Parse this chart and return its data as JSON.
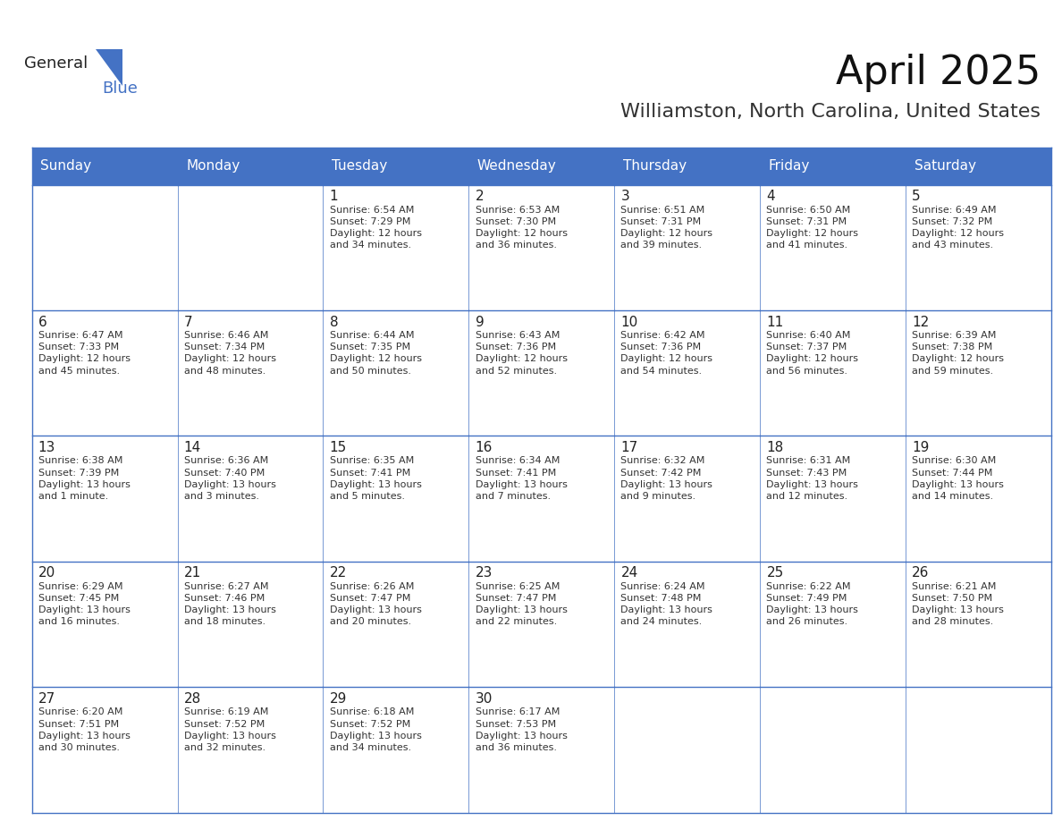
{
  "title": "April 2025",
  "subtitle": "Williamston, North Carolina, United States",
  "header_color": "#4472C4",
  "header_text_color": "#FFFFFF",
  "cell_bg_color": "#FFFFFF",
  "cell_alt_bg_color": "#F2F2F2",
  "border_color": "#4472C4",
  "text_color": "#333333",
  "days_of_week": [
    "Sunday",
    "Monday",
    "Tuesday",
    "Wednesday",
    "Thursday",
    "Friday",
    "Saturday"
  ],
  "weeks": [
    [
      {
        "day": "",
        "info": ""
      },
      {
        "day": "",
        "info": ""
      },
      {
        "day": "1",
        "info": "Sunrise: 6:54 AM\nSunset: 7:29 PM\nDaylight: 12 hours\nand 34 minutes."
      },
      {
        "day": "2",
        "info": "Sunrise: 6:53 AM\nSunset: 7:30 PM\nDaylight: 12 hours\nand 36 minutes."
      },
      {
        "day": "3",
        "info": "Sunrise: 6:51 AM\nSunset: 7:31 PM\nDaylight: 12 hours\nand 39 minutes."
      },
      {
        "day": "4",
        "info": "Sunrise: 6:50 AM\nSunset: 7:31 PM\nDaylight: 12 hours\nand 41 minutes."
      },
      {
        "day": "5",
        "info": "Sunrise: 6:49 AM\nSunset: 7:32 PM\nDaylight: 12 hours\nand 43 minutes."
      }
    ],
    [
      {
        "day": "6",
        "info": "Sunrise: 6:47 AM\nSunset: 7:33 PM\nDaylight: 12 hours\nand 45 minutes."
      },
      {
        "day": "7",
        "info": "Sunrise: 6:46 AM\nSunset: 7:34 PM\nDaylight: 12 hours\nand 48 minutes."
      },
      {
        "day": "8",
        "info": "Sunrise: 6:44 AM\nSunset: 7:35 PM\nDaylight: 12 hours\nand 50 minutes."
      },
      {
        "day": "9",
        "info": "Sunrise: 6:43 AM\nSunset: 7:36 PM\nDaylight: 12 hours\nand 52 minutes."
      },
      {
        "day": "10",
        "info": "Sunrise: 6:42 AM\nSunset: 7:36 PM\nDaylight: 12 hours\nand 54 minutes."
      },
      {
        "day": "11",
        "info": "Sunrise: 6:40 AM\nSunset: 7:37 PM\nDaylight: 12 hours\nand 56 minutes."
      },
      {
        "day": "12",
        "info": "Sunrise: 6:39 AM\nSunset: 7:38 PM\nDaylight: 12 hours\nand 59 minutes."
      }
    ],
    [
      {
        "day": "13",
        "info": "Sunrise: 6:38 AM\nSunset: 7:39 PM\nDaylight: 13 hours\nand 1 minute."
      },
      {
        "day": "14",
        "info": "Sunrise: 6:36 AM\nSunset: 7:40 PM\nDaylight: 13 hours\nand 3 minutes."
      },
      {
        "day": "15",
        "info": "Sunrise: 6:35 AM\nSunset: 7:41 PM\nDaylight: 13 hours\nand 5 minutes."
      },
      {
        "day": "16",
        "info": "Sunrise: 6:34 AM\nSunset: 7:41 PM\nDaylight: 13 hours\nand 7 minutes."
      },
      {
        "day": "17",
        "info": "Sunrise: 6:32 AM\nSunset: 7:42 PM\nDaylight: 13 hours\nand 9 minutes."
      },
      {
        "day": "18",
        "info": "Sunrise: 6:31 AM\nSunset: 7:43 PM\nDaylight: 13 hours\nand 12 minutes."
      },
      {
        "day": "19",
        "info": "Sunrise: 6:30 AM\nSunset: 7:44 PM\nDaylight: 13 hours\nand 14 minutes."
      }
    ],
    [
      {
        "day": "20",
        "info": "Sunrise: 6:29 AM\nSunset: 7:45 PM\nDaylight: 13 hours\nand 16 minutes."
      },
      {
        "day": "21",
        "info": "Sunrise: 6:27 AM\nSunset: 7:46 PM\nDaylight: 13 hours\nand 18 minutes."
      },
      {
        "day": "22",
        "info": "Sunrise: 6:26 AM\nSunset: 7:47 PM\nDaylight: 13 hours\nand 20 minutes."
      },
      {
        "day": "23",
        "info": "Sunrise: 6:25 AM\nSunset: 7:47 PM\nDaylight: 13 hours\nand 22 minutes."
      },
      {
        "day": "24",
        "info": "Sunrise: 6:24 AM\nSunset: 7:48 PM\nDaylight: 13 hours\nand 24 minutes."
      },
      {
        "day": "25",
        "info": "Sunrise: 6:22 AM\nSunset: 7:49 PM\nDaylight: 13 hours\nand 26 minutes."
      },
      {
        "day": "26",
        "info": "Sunrise: 6:21 AM\nSunset: 7:50 PM\nDaylight: 13 hours\nand 28 minutes."
      }
    ],
    [
      {
        "day": "27",
        "info": "Sunrise: 6:20 AM\nSunset: 7:51 PM\nDaylight: 13 hours\nand 30 minutes."
      },
      {
        "day": "28",
        "info": "Sunrise: 6:19 AM\nSunset: 7:52 PM\nDaylight: 13 hours\nand 32 minutes."
      },
      {
        "day": "29",
        "info": "Sunrise: 6:18 AM\nSunset: 7:52 PM\nDaylight: 13 hours\nand 34 minutes."
      },
      {
        "day": "30",
        "info": "Sunrise: 6:17 AM\nSunset: 7:53 PM\nDaylight: 13 hours\nand 36 minutes."
      },
      {
        "day": "",
        "info": ""
      },
      {
        "day": "",
        "info": ""
      },
      {
        "day": "",
        "info": ""
      }
    ]
  ],
  "logo_text_general": "General",
  "logo_text_blue": "Blue",
  "logo_color_general": "#222222",
  "logo_color_blue": "#4472C4",
  "logo_triangle_color": "#4472C4"
}
